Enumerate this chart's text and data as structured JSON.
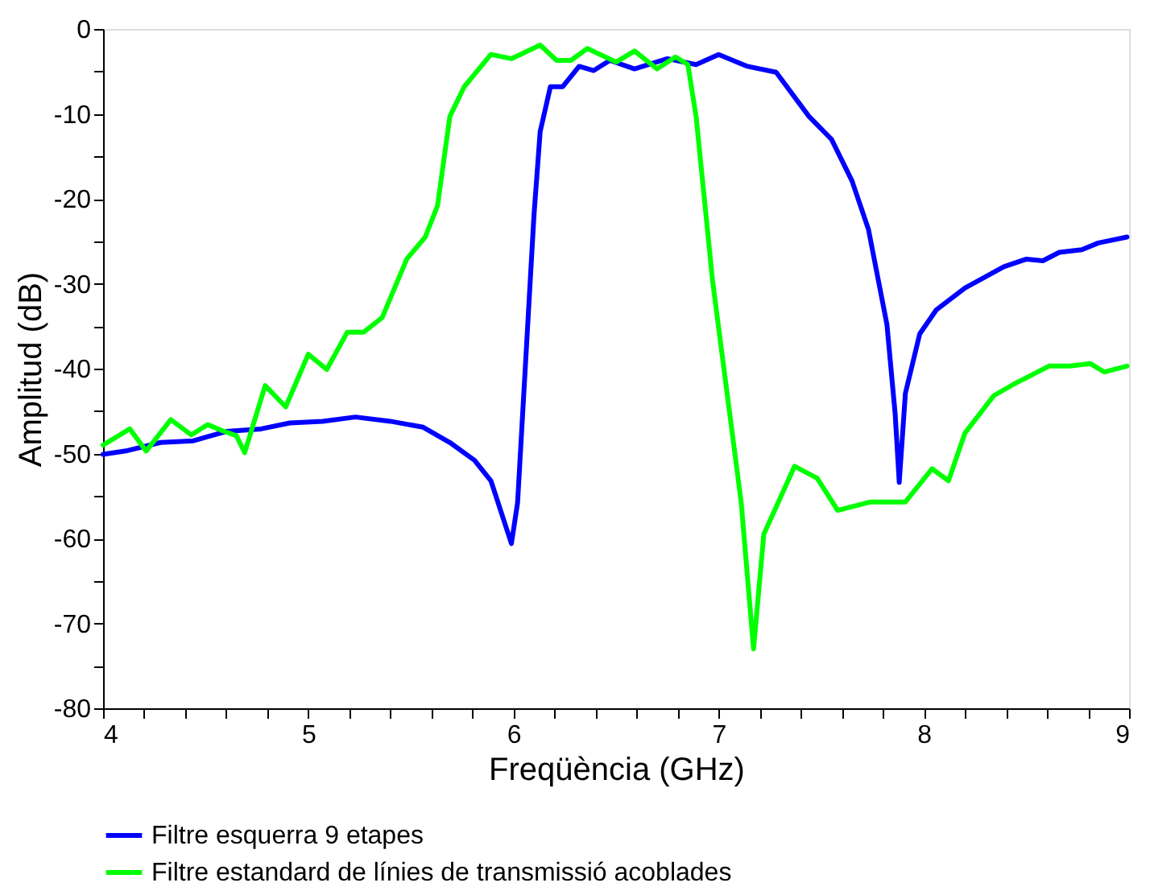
{
  "chart_data": {
    "type": "line",
    "xlabel": "Freqüència (GHz)",
    "ylabel": "Amplitud (dB)",
    "xlim": [
      4,
      9
    ],
    "ylim": [
      -80,
      0
    ],
    "xticks": [
      4,
      {
        "value": 4.2,
        "label": null
      },
      {
        "value": 4.4,
        "label": null
      },
      {
        "value": 4.6,
        "label": null
      },
      {
        "value": 4.8,
        "label": null
      },
      5,
      {
        "value": 5.2,
        "label": null
      },
      {
        "value": 5.4,
        "label": null
      },
      {
        "value": 5.6,
        "label": null
      },
      {
        "value": 5.8,
        "label": null
      },
      6,
      {
        "value": 6.2,
        "label": null
      },
      {
        "value": 6.4,
        "label": null
      },
      {
        "value": 6.6,
        "label": null
      },
      {
        "value": 6.8,
        "label": null
      },
      7,
      {
        "value": 7.2,
        "label": null
      },
      {
        "value": 7.4,
        "label": null
      },
      {
        "value": 7.6,
        "label": null
      },
      {
        "value": 7.8,
        "label": null
      },
      8,
      {
        "value": 8.2,
        "label": null
      },
      {
        "value": 8.4,
        "label": null
      },
      {
        "value": 8.6,
        "label": null
      },
      {
        "value": 8.8,
        "label": null
      },
      9
    ],
    "yticks": [
      -80,
      {
        "value": -75,
        "label": null
      },
      -70,
      {
        "value": -65,
        "label": null
      },
      -60,
      {
        "value": -55,
        "label": null
      },
      -50,
      {
        "value": -45,
        "label": null
      },
      -40,
      {
        "value": -35,
        "label": null
      },
      -30,
      {
        "value": -25,
        "label": null
      },
      -20,
      {
        "value": -15,
        "label": null
      },
      -10,
      {
        "value": -5,
        "label": null
      },
      0
    ],
    "legend": "bottom",
    "series": [
      {
        "name": "Filtre esquerra 9 etapes",
        "color": "#0000ff",
        "x": [
          4.0,
          4.11,
          4.28,
          4.44,
          4.6,
          4.77,
          4.91,
          5.07,
          5.23,
          5.4,
          5.56,
          5.69,
          5.81,
          5.89,
          5.99,
          6.02,
          6.1,
          6.13,
          6.18,
          6.24,
          6.32,
          6.39,
          6.47,
          6.59,
          6.75,
          6.89,
          7.0,
          7.14,
          7.28,
          7.44,
          7.55,
          7.65,
          7.73,
          7.82,
          7.86,
          7.88,
          7.91,
          7.98,
          8.06,
          8.2,
          8.39,
          8.5,
          8.58,
          8.66,
          8.77,
          8.85,
          8.99
        ],
        "values": [
          -50.1,
          -49.7,
          -48.7,
          -48.5,
          -47.4,
          -47.1,
          -46.4,
          -46.2,
          -45.7,
          -46.2,
          -46.9,
          -48.7,
          -50.8,
          -53.2,
          -60.6,
          -55.8,
          -21.9,
          -12.1,
          -6.8,
          -6.8,
          -4.4,
          -4.9,
          -3.7,
          -4.7,
          -3.5,
          -4.2,
          -3.0,
          -4.4,
          -5.1,
          -10.3,
          -13.0,
          -17.9,
          -23.6,
          -34.8,
          -45.3,
          -53.4,
          -42.9,
          -35.9,
          -33.1,
          -30.5,
          -28.0,
          -27.1,
          -27.3,
          -26.3,
          -26.0,
          -25.2,
          -24.5
        ]
      },
      {
        "name": "Filtre estandard de línies de transmissió acoblades",
        "color": "#00ff00",
        "x": [
          4.0,
          4.13,
          4.21,
          4.33,
          4.43,
          4.51,
          4.58,
          4.65,
          4.69,
          4.79,
          4.89,
          5.0,
          5.09,
          5.19,
          5.27,
          5.36,
          5.48,
          5.57,
          5.63,
          5.69,
          5.76,
          5.89,
          5.99,
          6.13,
          6.21,
          6.28,
          6.36,
          6.5,
          6.59,
          6.7,
          6.79,
          6.85,
          6.89,
          6.97,
          7.11,
          7.17,
          7.22,
          7.37,
          7.48,
          7.58,
          7.74,
          7.91,
          8.04,
          8.12,
          8.2,
          8.34,
          8.44,
          8.61,
          8.71,
          8.81,
          8.88,
          8.99
        ],
        "values": [
          -49.0,
          -47.1,
          -49.7,
          -46.0,
          -47.8,
          -46.6,
          -47.3,
          -47.9,
          -49.9,
          -42.0,
          -44.5,
          -38.3,
          -40.1,
          -35.7,
          -35.7,
          -34.0,
          -27.1,
          -24.5,
          -20.8,
          -10.3,
          -6.8,
          -3.0,
          -3.5,
          -1.9,
          -3.7,
          -3.7,
          -2.3,
          -3.9,
          -2.6,
          -4.7,
          -3.3,
          -4.2,
          -10.3,
          -29.6,
          -55.8,
          -73.0,
          -59.5,
          -51.5,
          -52.9,
          -56.7,
          -55.7,
          -55.7,
          -51.8,
          -53.2,
          -47.6,
          -43.2,
          -41.8,
          -39.7,
          -39.7,
          -39.4,
          -40.4,
          -39.7
        ]
      }
    ]
  }
}
